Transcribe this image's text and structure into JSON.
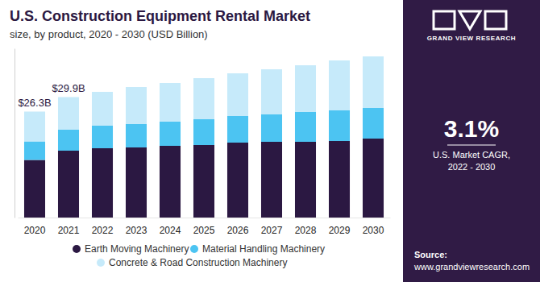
{
  "chart_data": {
    "type": "bar",
    "stacked": true,
    "title": "U.S. Construction Equipment Rental Market",
    "subtitle": "size, by product, 2020 - 2030 (USD Billion)",
    "categories": [
      "2020",
      "2021",
      "2022",
      "2023",
      "2024",
      "2025",
      "2026",
      "2027",
      "2028",
      "2029",
      "2030"
    ],
    "series": [
      {
        "name": "Earth Moving Machinery",
        "color": "#2b1842",
        "values": [
          14.3,
          16.6,
          17.2,
          17.4,
          17.8,
          18.0,
          18.6,
          18.8,
          18.8,
          19.0,
          19.6
        ]
      },
      {
        "name": "Material Handling Machinery",
        "color": "#4cc4f2",
        "values": [
          4.6,
          5.2,
          5.6,
          5.8,
          6.0,
          6.4,
          6.6,
          6.8,
          7.4,
          7.6,
          7.6
        ]
      },
      {
        "name": "Concrete & Road Construction Machinery",
        "color": "#c6eafa",
        "values": [
          7.4,
          8.1,
          8.4,
          9.2,
          9.6,
          10.2,
          10.6,
          11.2,
          11.6,
          12.4,
          12.8
        ]
      }
    ],
    "annotations": [
      {
        "text": "$26.3B",
        "x": "2020",
        "value": 26.3
      },
      {
        "text": "$29.9B",
        "x": "2021",
        "value": 29.9
      }
    ],
    "ylim": [
      0,
      42
    ],
    "tick_labels": "x",
    "legend": "bottom"
  },
  "sidebar": {
    "brand": "GRAND VIEW RESEARCH",
    "stat": "3.1%",
    "stat_label": [
      "U.S. Market CAGR,",
      "2022 - 2030"
    ],
    "source_label": "Source:",
    "source_url": "www.grandviewresearch.com"
  }
}
